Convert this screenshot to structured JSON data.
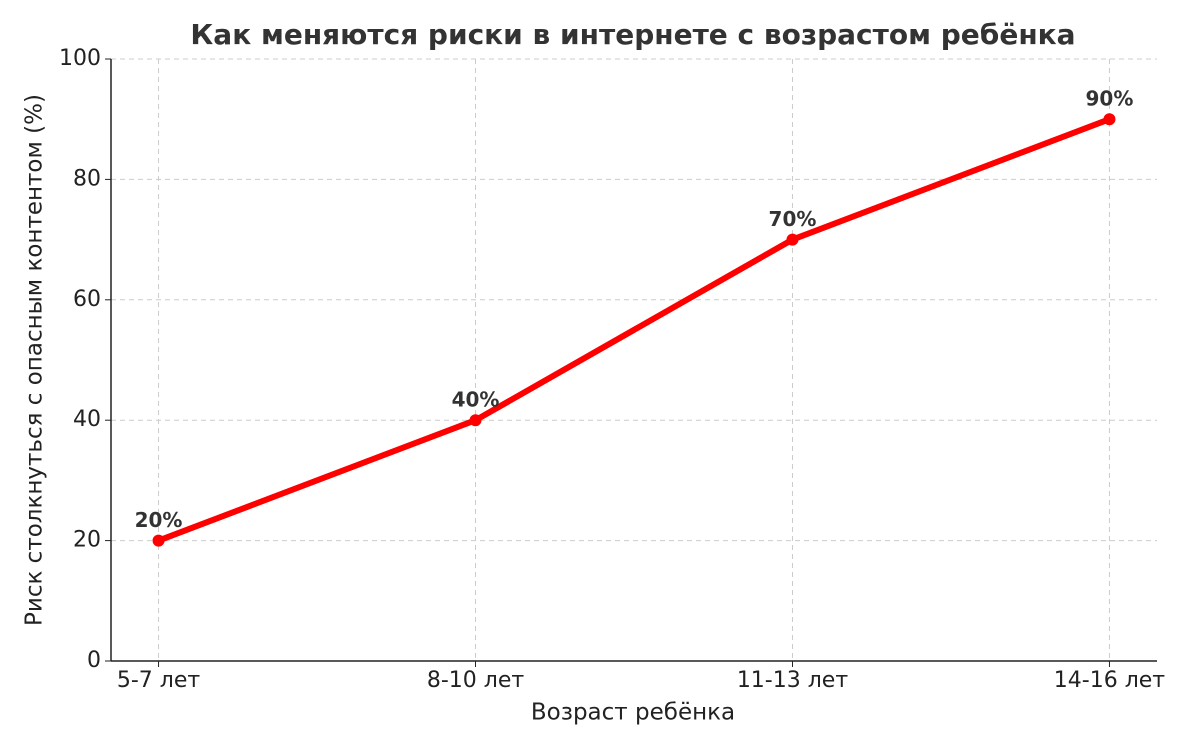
{
  "chart_data": {
    "type": "line",
    "title": "Как меняются риски в интернете с возрастом ребёнка",
    "x_label": "Возраст ребёнка",
    "y_label": "Риск столкнуться с опасным контентом (%)",
    "categories": [
      "5-7 лет",
      "8-10 лет",
      "11-13 лет",
      "14-16 лет"
    ],
    "values": [
      20,
      40,
      70,
      90
    ],
    "value_labels": [
      "20%",
      "40%",
      "70%",
      "90%"
    ],
    "color": "#ff0000",
    "ylim": [
      0,
      100
    ],
    "yticks": [
      0,
      20,
      40,
      60,
      80,
      100
    ],
    "grid": true
  }
}
